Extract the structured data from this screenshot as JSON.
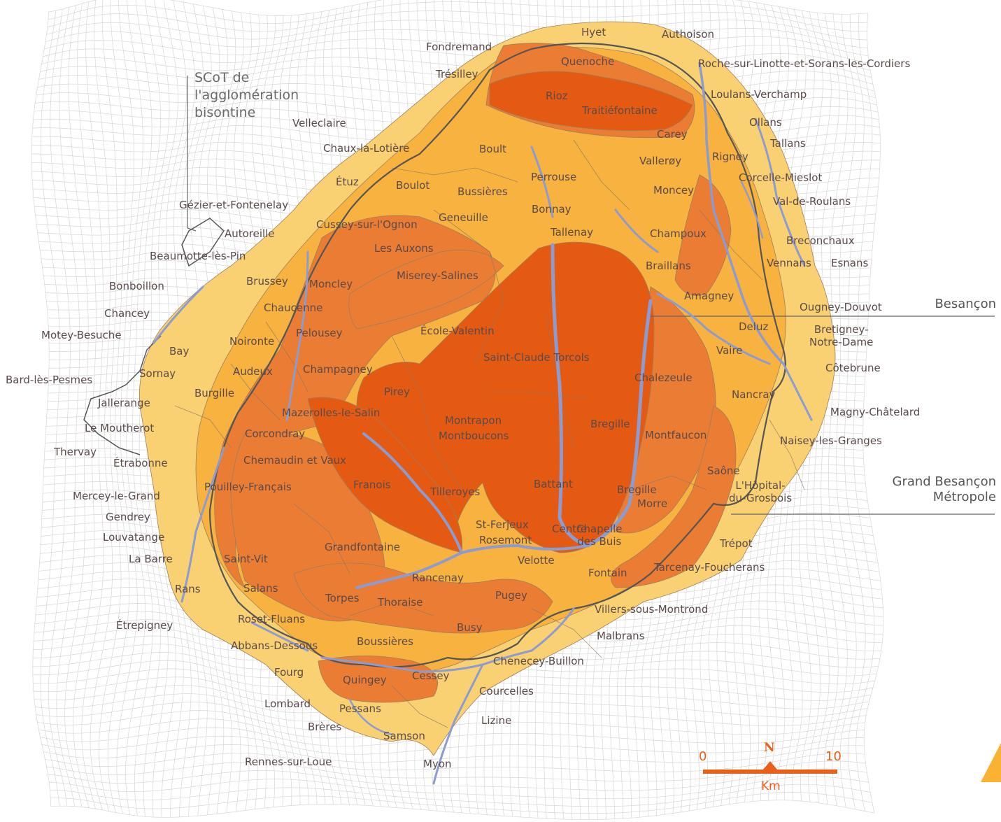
{
  "colors": {
    "grid": "#d6d6d6",
    "outer_zone": "#f9d173",
    "middle_zone": "#f7b23f",
    "inner_zone": "#eb7c34",
    "core_zone": "#e55a13",
    "rivers": "#8c9bd0",
    "boundaries": "#555555",
    "labels": "#5a4a4a",
    "scale": "#e8601a",
    "accent": "#f9b232"
  },
  "callouts": {
    "scot": [
      "SCoT de",
      "l'agglomération",
      "bisontine"
    ],
    "besancon": "Besançon",
    "gbm": [
      "Grand Besançon",
      "Métropole"
    ]
  },
  "scale_bar": {
    "min_label": "0",
    "max_label": "10",
    "north_label": "N",
    "unit": "Km"
  },
  "places": [
    "Hyet",
    "Authoison",
    "Fondremand",
    "Quenoche",
    "Roche-sur-Linotte-et-Sorans-les-Cordiers",
    "Trésilley",
    "Rioz",
    "Traitiéfontaine",
    "Loulans-Verchamp",
    "Ollans",
    "Velleclaire",
    "Carey",
    "Tallans",
    "Chaux-la-Lotière",
    "Boult",
    "Vallerøy",
    "Rigney",
    "Étuz",
    "Boulot",
    "Bussières",
    "Perrouse",
    "Moncey",
    "Corcelle-Mieslot",
    "Gézier-et-Fontenelay",
    "Val-de-Roulans",
    "Bonnay",
    "Autoreille",
    "Cussey-sur-l'Ognon",
    "Geneuille",
    "Tallenay",
    "Champoux",
    "Breconchaux",
    "Beaumotte-lès-Pin",
    "Les Auxons",
    "Braillans",
    "Vennans",
    "Esnans",
    "Miserey-Salines",
    "Bonboillon",
    "Brussey",
    "Moncley",
    "Amagney",
    "Ougney-Douvot",
    "Chancey",
    "Chaucenne",
    "Deluz",
    "Bretigney-Notre-Dame",
    "Pelousey",
    "École-Valentin",
    "Motey-Besuche",
    "Bay",
    "Noironte",
    "Vaire",
    "Saint-Claude Torcols",
    "Côtebrune",
    "Audeux",
    "Bard-lès-Pesmes",
    "Sornay",
    "Champagney",
    "Chalezeule",
    "Burgille",
    "Pirey",
    "Nancray",
    "Jallerange",
    "Mazerolles-le-Salin",
    "Magny-Châtelard",
    "Montrapon",
    "Bregille",
    "Le Moutherot",
    "Montboucons",
    "Naisey-les-Granges",
    "Corcondray",
    "Montfaucon",
    "Thervay",
    "Chemaudin et Vaux",
    "Étrabonne",
    "Saône",
    "Pouilley-Français",
    "Battant",
    "L'Hôpital-du-Grosbois",
    "Franois",
    "Bregille",
    "Tilleroyes",
    "Mercey-le-Grand",
    "Morre",
    "Gendrey",
    "St-Ferjeux",
    "Centre",
    "Chapelle des Buis",
    "Louvatange",
    "Rosemont",
    "Trépot",
    "Grandfontaine",
    "La Barre",
    "Saint-Vit",
    "Velotte",
    "Tarcenay-Foucherans",
    "Fontain",
    "Rancenay",
    "Rans",
    "Salans",
    "Pugey",
    "Torpes",
    "Thoraise",
    "Villers-sous-Montrond",
    "Étrepigney",
    "Roset-Fluans",
    "Busy",
    "Malbrans",
    "Boussières",
    "Abbans-Dessous",
    "Chenecey-Buillon",
    "Fourg",
    "Cessey",
    "Quingey",
    "Courcelles",
    "Lombard",
    "Lizine",
    "Pessans",
    "Brères",
    "Samson",
    "Rennes-sur-Loue",
    "Myon"
  ]
}
